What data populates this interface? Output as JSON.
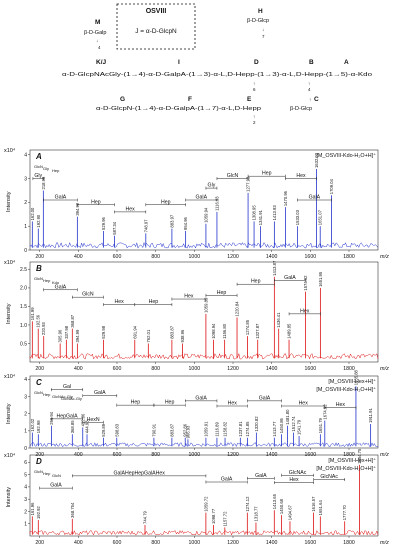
{
  "structure": {
    "box_label": "OSVIII",
    "box_text": "J = α-D-GlcpN",
    "letters": [
      "M",
      "K/J",
      "I",
      "D",
      "H",
      "B",
      "A",
      "G",
      "F",
      "E",
      "C"
    ],
    "m_text": "β-D-Galp",
    "h_text": "β-D-Glcp",
    "c_text": "β-D-Glcp",
    "main_chain": "α-D-GlcpNAcGly-(1→4)-α-D-GalpA-(1→3)-α-L,D-Hepp-(1→3)-α-L,D-Hepp-(1→5)-α-Kdo",
    "lower_chain": "α-D-GlcpN-(1→4)-α-D-GalpA-(1→7)-α-L,D-Hepp",
    "link_m": "↓\n4",
    "link_h": "↓\n7",
    "link_d": "↑\n6",
    "link_b": "↑\n4",
    "link_e": "↑\n2",
    "link_c": "↑\n1"
  },
  "chart_data": [
    {
      "type": "line",
      "panel": "A",
      "color": "#2233cc",
      "scale": "x10⁴",
      "ylabel": "Intensity",
      "y_ticks": [
        "0",
        "1",
        "2",
        "3",
        "4"
      ],
      "ylim": [
        0,
        4.2
      ],
      "xlim": [
        150,
        1950
      ],
      "ion_label": "[M_OSVIII-Kdo-H₂O+H]⁺",
      "peaks": [
        {
          "x": 162.0,
          "y": 1.2,
          "label": "162.00"
        },
        {
          "x": 192.9,
          "y": 0.9,
          "label": "192.90"
        },
        {
          "x": 218.98,
          "y": 2.5,
          "label": "218.98"
        },
        {
          "x": 394.92,
          "y": 1.4,
          "label": "394.92"
        },
        {
          "x": 529.96,
          "y": 0.8,
          "label": "529.96"
        },
        {
          "x": 587.34,
          "y": 0.6,
          "label": "587.34"
        },
        {
          "x": 748.97,
          "y": 0.7,
          "label": "748.97"
        },
        {
          "x": 883.97,
          "y": 0.9,
          "label": "883.97"
        },
        {
          "x": 954.96,
          "y": 0.8,
          "label": "954.96"
        },
        {
          "x": 1059.94,
          "y": 1.1,
          "label": "1059.94"
        },
        {
          "x": 1116.93,
          "y": 1.6,
          "label": "1116.93"
        },
        {
          "x": 1277.93,
          "y": 2.4,
          "label": "1277.93"
        },
        {
          "x": 1308.95,
          "y": 1.2,
          "label": "1308.95"
        },
        {
          "x": 1341.91,
          "y": 1.0,
          "label": "1341.91"
        },
        {
          "x": 1413.93,
          "y": 1.2,
          "label": "1413.93"
        },
        {
          "x": 1470.96,
          "y": 1.8,
          "label": "1470.96"
        },
        {
          "x": 1533.03,
          "y": 1.0,
          "label": "1533.03"
        },
        {
          "x": 1632.02,
          "y": 3.4,
          "label": "1632.02"
        },
        {
          "x": 1651.07,
          "y": 1.0,
          "label": "1651.07"
        },
        {
          "x": 1709.04,
          "y": 2.3,
          "label": "1709.04"
        }
      ],
      "small_labels": [
        "GlcN",
        "Gly",
        "Hep"
      ],
      "brackets": [
        {
          "label": "Gly",
          "x1": 165,
          "x2": 220,
          "level": 3.0
        },
        {
          "label": "GalA",
          "x1": 220,
          "x2": 395,
          "level": 2.1
        },
        {
          "label": "Hep",
          "x1": 395,
          "x2": 587,
          "level": 1.9
        },
        {
          "label": "Hex",
          "x1": 587,
          "x2": 749,
          "level": 1.6
        },
        {
          "label": "Hep",
          "x1": 749,
          "x2": 955,
          "level": 1.9
        },
        {
          "label": "GalA",
          "x1": 955,
          "x2": 1117,
          "level": 2.1
        },
        {
          "label": "Gly",
          "x1": 1060,
          "x2": 1117,
          "level": 2.6
        },
        {
          "label": "GlcN",
          "x1": 1117,
          "x2": 1278,
          "level": 3.0
        },
        {
          "label": "Hep",
          "x1": 1278,
          "x2": 1471,
          "level": 3.1
        },
        {
          "label": "Hex",
          "x1": 1471,
          "x2": 1632,
          "level": 3.0
        },
        {
          "label": "GalA",
          "x1": 1533,
          "x2": 1709,
          "level": 2.1
        }
      ]
    },
    {
      "type": "line",
      "panel": "B",
      "color": "#dd1111",
      "scale": "x10⁴",
      "ylabel": "Intensity",
      "y_ticks": [
        "0.5",
        "1.0",
        "1.5",
        "2.0",
        "2.5"
      ],
      "ylim": [
        0,
        2.7
      ],
      "xlim": [
        150,
        1950
      ],
      "ion_label": "",
      "peaks": [
        {
          "x": 161.99,
          "y": 1.1,
          "label": "161.99"
        },
        {
          "x": 192.56,
          "y": 0.9,
          "label": "192.56"
        },
        {
          "x": 220.93,
          "y": 0.7,
          "label": "220.93"
        },
        {
          "x": 305.96,
          "y": 0.5,
          "label": "305.96"
        },
        {
          "x": 337.98,
          "y": 0.6,
          "label": "337.98"
        },
        {
          "x": 368.87,
          "y": 0.9,
          "label": "368.87"
        },
        {
          "x": 394.99,
          "y": 0.5,
          "label": "394.99"
        },
        {
          "x": 529.98,
          "y": 0.6,
          "label": "529.98"
        },
        {
          "x": 691.94,
          "y": 0.6,
          "label": "691.94"
        },
        {
          "x": 762.01,
          "y": 0.5,
          "label": "762.01"
        },
        {
          "x": 883.87,
          "y": 0.6,
          "label": "883.87"
        },
        {
          "x": 938.96,
          "y": 0.5,
          "label": "938.96"
        },
        {
          "x": 1059.85,
          "y": 1.3,
          "label": "1059.85"
        },
        {
          "x": 1098.94,
          "y": 0.6,
          "label": "1098.94"
        },
        {
          "x": 1156.8,
          "y": 0.6,
          "label": "1156.80"
        },
        {
          "x": 1220.84,
          "y": 1.2,
          "label": "1220.84"
        },
        {
          "x": 1274.85,
          "y": 0.7,
          "label": "1274.85"
        },
        {
          "x": 1327.87,
          "y": 0.6,
          "label": "1327.87"
        },
        {
          "x": 1413.87,
          "y": 2.3,
          "label": "1413.87"
        },
        {
          "x": 1436.41,
          "y": 0.9,
          "label": "1436.41"
        },
        {
          "x": 1489.85,
          "y": 0.6,
          "label": "1489.85"
        },
        {
          "x": 1574.92,
          "y": 1.9,
          "label": "1574.92"
        },
        {
          "x": 1651.95,
          "y": 2.0,
          "label": "1651.95"
        }
      ],
      "small_labels": [
        "GlcN",
        "Hep",
        "Kdo"
      ],
      "brackets": [
        {
          "label": "GalA",
          "x1": 220,
          "x2": 395,
          "level": 1.95
        },
        {
          "label": "GlcN",
          "x1": 369,
          "x2": 530,
          "level": 1.75
        },
        {
          "label": "Hex",
          "x1": 530,
          "x2": 692,
          "level": 1.55
        },
        {
          "label": "Hep",
          "x1": 692,
          "x2": 884,
          "level": 1.55
        },
        {
          "label": "Hex",
          "x1": 884,
          "x2": 1060,
          "level": 1.7
        },
        {
          "label": "Hep",
          "x1": 1060,
          "x2": 1221,
          "level": 1.8
        },
        {
          "label": "Hep",
          "x1": 1221,
          "x2": 1414,
          "level": 2.1
        },
        {
          "label": "GalA",
          "x1": 1414,
          "x2": 1575,
          "level": 2.2
        },
        {
          "label": "Hex",
          "x1": 1490,
          "x2": 1652,
          "level": 1.3
        }
      ]
    },
    {
      "type": "line",
      "panel": "C",
      "color": "#2233cc",
      "scale": "x10⁴",
      "ylabel": "Intensity",
      "y_ticks": [
        "0",
        "1",
        "2",
        "3",
        "4"
      ],
      "ylim": [
        0,
        4.2
      ],
      "xlim": [
        150,
        1950
      ],
      "ion_label": "[M_OSVIII-Hex+H]⁺\n[M_OSVIII-Kdo-H₂O+H]⁺",
      "peaks": [
        {
          "x": 162.02,
          "y": 0.9,
          "label": "162.02"
        },
        {
          "x": 192.98,
          "y": 0.8,
          "label": "192.98"
        },
        {
          "x": 260.94,
          "y": 1.3,
          "label": "260.94"
        },
        {
          "x": 368.85,
          "y": 0.8,
          "label": "368.85"
        },
        {
          "x": 422.86,
          "y": 1.2,
          "label": "422.86"
        },
        {
          "x": 444.93,
          "y": 0.8,
          "label": "444.93"
        },
        {
          "x": 529.89,
          "y": 0.6,
          "label": "529.89"
        },
        {
          "x": 598.83,
          "y": 0.6,
          "label": "598.83"
        },
        {
          "x": 790.91,
          "y": 0.6,
          "label": "790.91"
        },
        {
          "x": 883.87,
          "y": 0.6,
          "label": "883.87"
        },
        {
          "x": 952.86,
          "y": 0.6,
          "label": "952.86"
        },
        {
          "x": 966.93,
          "y": 0.5,
          "label": "966.93"
        },
        {
          "x": 1059.91,
          "y": 0.6,
          "label": "1059.91"
        },
        {
          "x": 1116.89,
          "y": 0.6,
          "label": "1116.89"
        },
        {
          "x": 1158.82,
          "y": 0.6,
          "label": "1158.82"
        },
        {
          "x": 1237.81,
          "y": 0.6,
          "label": "1237.81"
        },
        {
          "x": 1274.85,
          "y": 0.6,
          "label": "1274.85"
        },
        {
          "x": 1320.82,
          "y": 0.9,
          "label": "1320.82"
        },
        {
          "x": 1413.77,
          "y": 0.6,
          "label": "1413.77"
        },
        {
          "x": 1450.86,
          "y": 0.8,
          "label": "1450.86"
        },
        {
          "x": 1481.8,
          "y": 1.3,
          "label": "1481.80"
        },
        {
          "x": 1512.74,
          "y": 0.9,
          "label": "1512.74"
        },
        {
          "x": 1541.79,
          "y": 0.7,
          "label": "1541.79"
        },
        {
          "x": 1651.79,
          "y": 0.8,
          "label": "1651.79"
        },
        {
          "x": 1674.82,
          "y": 1.6,
          "label": "1674.82"
        },
        {
          "x": 1835.88,
          "y": 3.6,
          "label": "1835.88"
        },
        {
          "x": 1911.91,
          "y": 1.4,
          "label": "1911.91"
        }
      ],
      "small_labels": [
        "GlcN",
        "Hep",
        "GlcNAc-Gly",
        "GlcNAc-Gly"
      ],
      "brackets": [
        {
          "label": "Gal",
          "x1": 260,
          "x2": 423,
          "level": 3.4
        },
        {
          "label": "GalA",
          "x1": 423,
          "x2": 599,
          "level": 3.05
        },
        {
          "label": "HepGalA",
          "x1": 260,
          "x2": 423,
          "level": 1.7
        },
        {
          "label": "HexN",
          "x1": 423,
          "x2": 530,
          "level": 1.5
        },
        {
          "label": "Hep",
          "x1": 599,
          "x2": 791,
          "level": 2.5
        },
        {
          "label": "Hep",
          "x1": 791,
          "x2": 953,
          "level": 2.5
        },
        {
          "label": "GalA",
          "x1": 953,
          "x2": 1117,
          "level": 2.75
        },
        {
          "label": "Hex",
          "x1": 1117,
          "x2": 1275,
          "level": 2.45
        },
        {
          "label": "GalA",
          "x1": 1275,
          "x2": 1451,
          "level": 2.75
        },
        {
          "label": "Hex",
          "x1": 1451,
          "x2": 1675,
          "level": 2.45
        },
        {
          "label": "Hex",
          "x1": 1675,
          "x2": 1836,
          "level": 2.35
        }
      ]
    },
    {
      "type": "line",
      "panel": "D",
      "color": "#dd1111",
      "scale": "x10⁴",
      "ylabel": "Intensity",
      "y_ticks": [
        "1",
        "2",
        "3",
        "4",
        "5",
        "6"
      ],
      "ylim": [
        0,
        6.6
      ],
      "xlim": [
        150,
        1950
      ],
      "ion_label": "[M_OSVIII-Hex+H]⁺\n[M_OSVIII-Kdo-H₂O+H]⁺",
      "peaks": [
        {
          "x": 161.96,
          "y": 1.6,
          "label": "161.96"
        },
        {
          "x": 192.92,
          "y": 1.3,
          "label": "192.92"
        },
        {
          "x": 368.754,
          "y": 1.4,
          "label": "368.754"
        },
        {
          "x": 744.79,
          "y": 0.9,
          "label": "744.79"
        },
        {
          "x": 1059.72,
          "y": 1.9,
          "label": "1059.72"
        },
        {
          "x": 1098.77,
          "y": 0.9,
          "label": "1098.77"
        },
        {
          "x": 1157.72,
          "y": 0.7,
          "label": "1157.72"
        },
        {
          "x": 1274.12,
          "y": 1.9,
          "label": "1274.12"
        },
        {
          "x": 1318.77,
          "y": 1.1,
          "label": "1318.77"
        },
        {
          "x": 1413.65,
          "y": 2.1,
          "label": "1413.65"
        },
        {
          "x": 1450.68,
          "y": 1.7,
          "label": "1450.68"
        },
        {
          "x": 1494.67,
          "y": 1.2,
          "label": "1494.67"
        },
        {
          "x": 1616.57,
          "y": 1.9,
          "label": "1616.57"
        },
        {
          "x": 1651.64,
          "y": 1.6,
          "label": "1651.64"
        },
        {
          "x": 1777.7,
          "y": 1.2,
          "label": "1777.70"
        },
        {
          "x": 1854.75,
          "y": 5.8,
          "label": "1854.75"
        }
      ],
      "small_labels": [
        "GlcN",
        "Hep",
        "GlcN"
      ],
      "brackets": [
        {
          "label": "GalA",
          "x1": 200,
          "x2": 369,
          "level": 3.9
        },
        {
          "label": "GalAHepHepGalAHex",
          "x1": 369,
          "x2": 1060,
          "level": 4.9
        },
        {
          "label": "GalA",
          "x1": 1060,
          "x2": 1274,
          "level": 4.4
        },
        {
          "label": "GalA",
          "x1": 1274,
          "x2": 1414,
          "level": 4.7
        },
        {
          "label": "GlcNAc",
          "x1": 1451,
          "x2": 1617,
          "level": 4.95
        },
        {
          "label": "GlcNAc",
          "x1": 1617,
          "x2": 1778,
          "level": 4.6
        },
        {
          "label": "Hex",
          "x1": 1414,
          "x2": 1617,
          "level": 4.35
        }
      ]
    }
  ],
  "x_ticks": [
    "200",
    "400",
    "600",
    "800",
    "1000",
    "1200",
    "1400",
    "1600",
    "1800"
  ],
  "x_tick_values": [
    200,
    400,
    600,
    800,
    1000,
    1200,
    1400,
    1600,
    1800
  ],
  "xunit": "m/z"
}
